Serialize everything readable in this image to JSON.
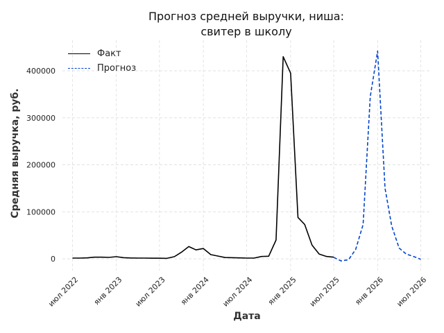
{
  "chart_data": {
    "type": "line",
    "title_line1": "Прогноз средней выручки, ниша:",
    "title_line2": "свитер в школу",
    "xlabel": "Дата",
    "ylabel": "Средняя выручка, руб.",
    "x_ticks": [
      {
        "date": "2022-07-01",
        "label": "июл 2022"
      },
      {
        "date": "2023-01-01",
        "label": "янв 2023"
      },
      {
        "date": "2023-07-01",
        "label": "июл 2023"
      },
      {
        "date": "2024-01-01",
        "label": "янв 2024"
      },
      {
        "date": "2024-07-01",
        "label": "июл 2024"
      },
      {
        "date": "2025-01-01",
        "label": "янв 2025"
      },
      {
        "date": "2025-07-01",
        "label": "июл 2025"
      },
      {
        "date": "2026-01-01",
        "label": "янв 2026"
      },
      {
        "date": "2026-07-01",
        "label": "июл 2026"
      }
    ],
    "y_ticks": [
      0,
      100000,
      200000,
      300000,
      400000
    ],
    "y_tick_labels": [
      "0",
      "100000",
      "200000",
      "300000",
      "400000"
    ],
    "xlim": [
      "2022-05-20",
      "2026-08-15"
    ],
    "ylim": [
      -25000,
      465000
    ],
    "grid": true,
    "legend_position": "top-left",
    "series": [
      {
        "name": "Факт",
        "color": "#000000",
        "style": "solid",
        "points": [
          {
            "x": "2022-07-01",
            "y": 1500
          },
          {
            "x": "2022-08-01",
            "y": 1500
          },
          {
            "x": "2022-09-01",
            "y": 2000
          },
          {
            "x": "2022-10-01",
            "y": 3500
          },
          {
            "x": "2022-11-01",
            "y": 3500
          },
          {
            "x": "2022-12-01",
            "y": 3000
          },
          {
            "x": "2023-01-01",
            "y": 4500
          },
          {
            "x": "2023-02-01",
            "y": 2500
          },
          {
            "x": "2023-03-01",
            "y": 1800
          },
          {
            "x": "2023-04-01",
            "y": 1500
          },
          {
            "x": "2023-05-01",
            "y": 1500
          },
          {
            "x": "2023-06-01",
            "y": 1300
          },
          {
            "x": "2023-07-01",
            "y": 1200
          },
          {
            "x": "2023-08-01",
            "y": 1000
          },
          {
            "x": "2023-09-01",
            "y": 4500
          },
          {
            "x": "2023-10-01",
            "y": 14000
          },
          {
            "x": "2023-11-01",
            "y": 26000
          },
          {
            "x": "2023-12-01",
            "y": 19000
          },
          {
            "x": "2024-01-01",
            "y": 22000
          },
          {
            "x": "2024-02-01",
            "y": 9000
          },
          {
            "x": "2024-03-01",
            "y": 6000
          },
          {
            "x": "2024-04-01",
            "y": 2800
          },
          {
            "x": "2024-05-01",
            "y": 2500
          },
          {
            "x": "2024-06-01",
            "y": 2000
          },
          {
            "x": "2024-07-01",
            "y": 1500
          },
          {
            "x": "2024-08-01",
            "y": 1500
          },
          {
            "x": "2024-09-01",
            "y": 5000
          },
          {
            "x": "2024-10-01",
            "y": 5500
          },
          {
            "x": "2024-11-01",
            "y": 40000
          },
          {
            "x": "2024-12-01",
            "y": 430000
          },
          {
            "x": "2025-01-01",
            "y": 395000
          },
          {
            "x": "2025-02-01",
            "y": 88000
          },
          {
            "x": "2025-03-01",
            "y": 73000
          },
          {
            "x": "2025-04-01",
            "y": 29000
          },
          {
            "x": "2025-05-01",
            "y": 10000
          },
          {
            "x": "2025-06-01",
            "y": 5000
          },
          {
            "x": "2025-07-01",
            "y": 3500
          }
        ]
      },
      {
        "name": "Прогноз",
        "color": "#0044cc",
        "style": "dashed",
        "points": [
          {
            "x": "2025-07-01",
            "y": 3000
          },
          {
            "x": "2025-08-01",
            "y": -4500
          },
          {
            "x": "2025-09-01",
            "y": -2000
          },
          {
            "x": "2025-10-01",
            "y": 20000
          },
          {
            "x": "2025-11-01",
            "y": 73000
          },
          {
            "x": "2025-12-01",
            "y": 345000
          },
          {
            "x": "2026-01-01",
            "y": 442000
          },
          {
            "x": "2026-02-01",
            "y": 150000
          },
          {
            "x": "2026-03-01",
            "y": 70000
          },
          {
            "x": "2026-04-01",
            "y": 23000
          },
          {
            "x": "2026-05-01",
            "y": 10000
          },
          {
            "x": "2026-06-01",
            "y": 5000
          },
          {
            "x": "2026-07-01",
            "y": -1000
          }
        ]
      }
    ]
  }
}
